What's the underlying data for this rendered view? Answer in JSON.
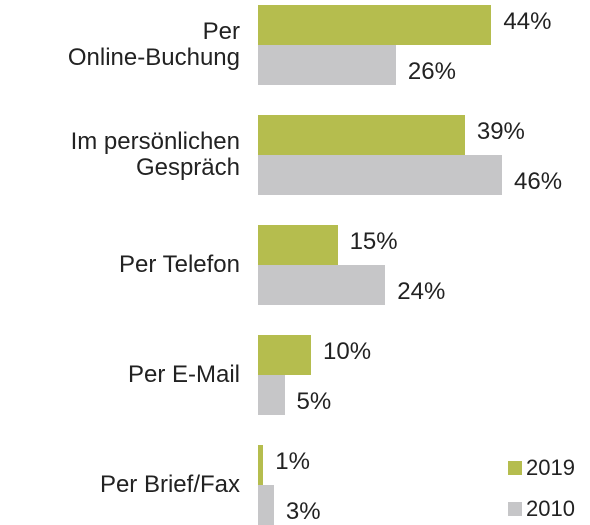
{
  "chart_data": {
    "type": "bar",
    "orientation": "horizontal",
    "categories": [
      "Per\nOnline-Buchung",
      "Im persönlichen\nGespräch",
      "Per Telefon",
      "Per E-Mail",
      "Per Brief/Fax"
    ],
    "series": [
      {
        "name": "2019",
        "color": "#b5bd4e",
        "values": [
          44,
          39,
          15,
          10,
          1
        ],
        "value_labels": [
          "44%",
          "39%",
          "15%",
          "10%",
          "1%"
        ]
      },
      {
        "name": "2010",
        "color": "#c6c6c8",
        "values": [
          26,
          46,
          24,
          5,
          3
        ],
        "value_labels": [
          "26%",
          "46%",
          "24%",
          "5%",
          "3%"
        ]
      }
    ],
    "legend": "bottom-right"
  }
}
